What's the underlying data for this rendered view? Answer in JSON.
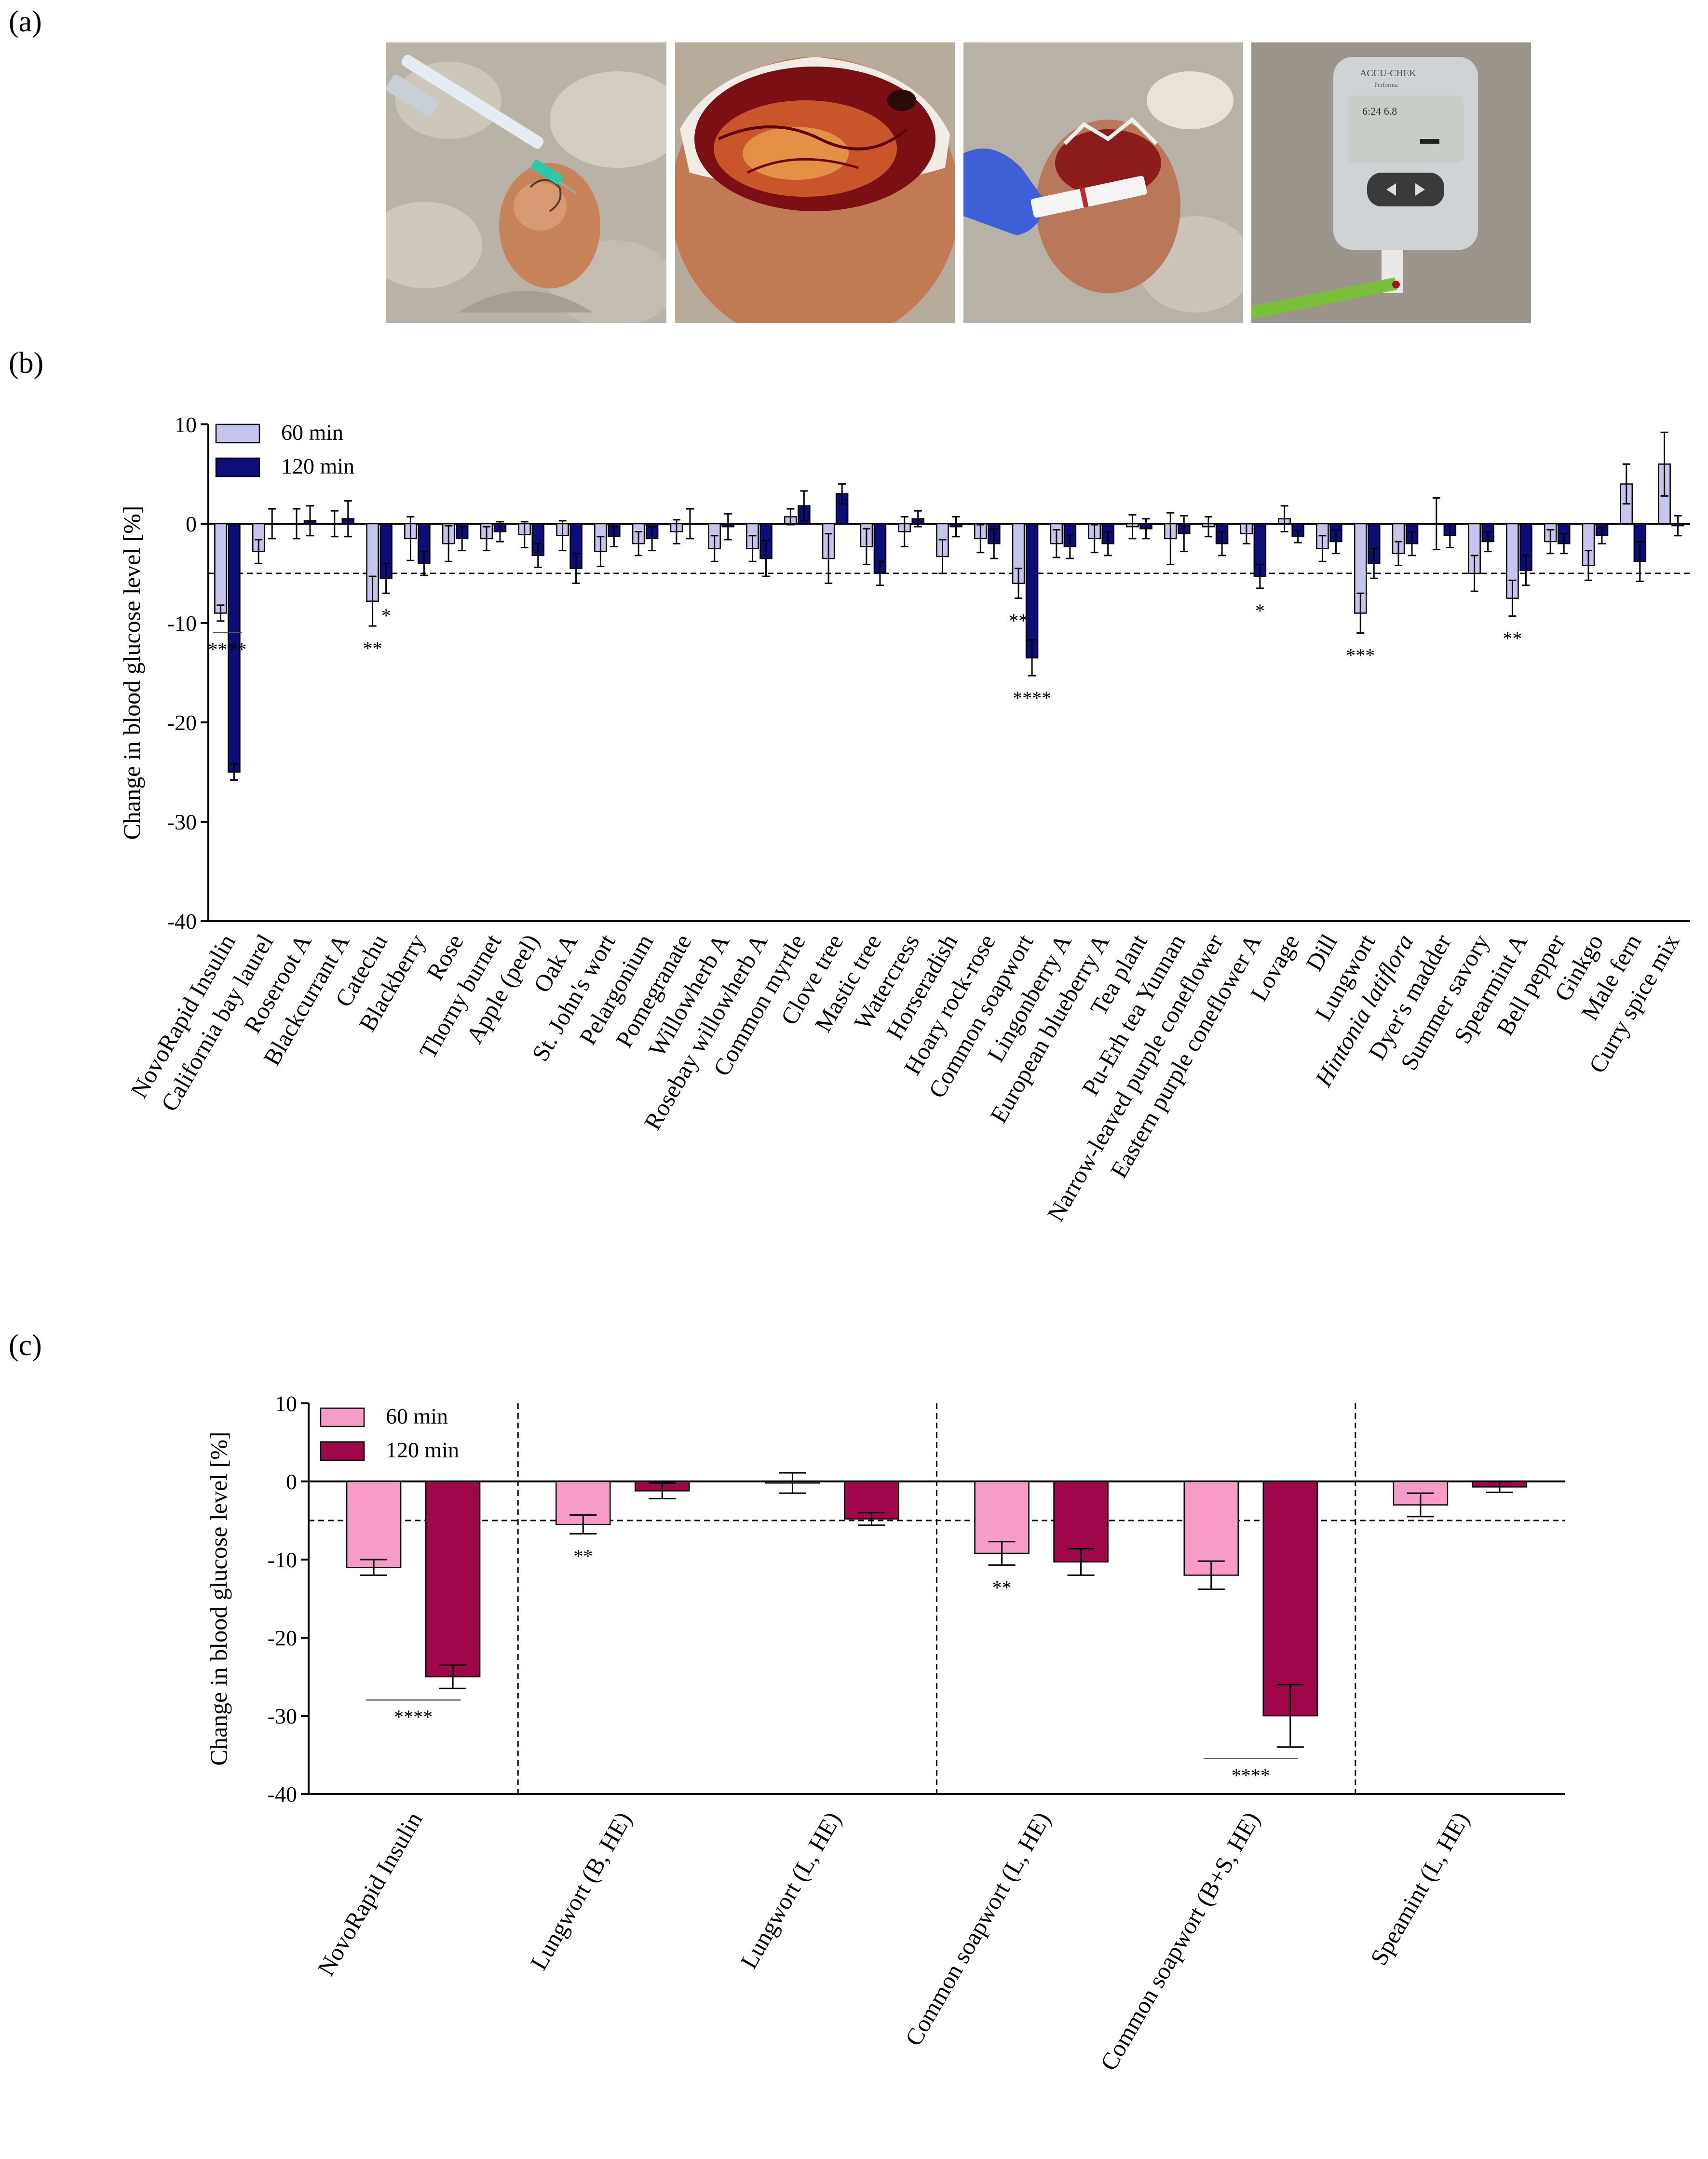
{
  "panels": {
    "a": "(a)",
    "b": "(b)",
    "c": "(c)"
  },
  "photos": [
    {
      "name": "photo-egg-injection",
      "meter_top": "",
      "meter_bottom": ""
    },
    {
      "name": "photo-opened-egg",
      "meter_top": "",
      "meter_bottom": ""
    },
    {
      "name": "photo-blood-sampling",
      "meter_top": "",
      "meter_bottom": ""
    },
    {
      "name": "photo-glucometer",
      "meter_top": "ACCU-CHEK",
      "meter_bottom": "Performa"
    }
  ],
  "chart_data": [
    {
      "id": "b",
      "type": "bar",
      "title": "",
      "ylabel": "Change in blood glucose level [%]",
      "xlabel": "",
      "ylim": [
        -40,
        10
      ],
      "yticks": [
        10,
        0,
        -10,
        -20,
        -30,
        -40
      ],
      "reference_line": -5,
      "legend": {
        "position": "top-left"
      },
      "series": [
        {
          "name": "60 min",
          "color": "#c5c5f0",
          "values": [
            -9,
            -2.8,
            0,
            0,
            -7.8,
            -1.5,
            -2,
            -1.5,
            -1.1,
            -1.2,
            -2.8,
            -2,
            -0.8,
            -2.5,
            -2.5,
            0.7,
            -3.5,
            -2.3,
            -0.8,
            -3.3,
            -1.5,
            -6,
            -2,
            -1.5,
            -0.3,
            -1.5,
            -0.3,
            -1,
            0.5,
            -2.5,
            -9,
            -3,
            0,
            -5,
            -7.5,
            -1.8,
            -4.2,
            4,
            6
          ],
          "errors": [
            0.8,
            1.2,
            1.5,
            1.3,
            2.5,
            2.2,
            1.8,
            1.2,
            1.3,
            1.5,
            1.5,
            1.2,
            1.2,
            1.3,
            1.3,
            0.8,
            2.5,
            1.8,
            1.5,
            1.7,
            1.4,
            1.5,
            1.4,
            1.4,
            1.2,
            2.6,
            1.0,
            1.0,
            1.3,
            1.3,
            2,
            1.2,
            2.6,
            1.8,
            1.8,
            1.2,
            1.5,
            2,
            3.2
          ]
        },
        {
          "name": "120 min",
          "color": "#0d0d7a",
          "values": [
            -25,
            0,
            0.3,
            0.5,
            -5.5,
            -4,
            -1.5,
            -0.8,
            -3.2,
            -4.5,
            -1.3,
            -1.5,
            0,
            -0.3,
            -3.5,
            1.8,
            3,
            -5,
            0.5,
            -0.3,
            -2,
            -13.5,
            -2.3,
            -2,
            -0.5,
            -1,
            -2,
            -5.3,
            -1.3,
            -1.8,
            -4,
            -2,
            -1.2,
            -1.8,
            -4.7,
            -2,
            -1.2,
            -3.8,
            -0.2
          ],
          "errors": [
            0.8,
            1.5,
            1.5,
            1.8,
            1.5,
            1.2,
            1.2,
            1,
            1.2,
            1.5,
            1,
            1.2,
            1.5,
            1.3,
            1.8,
            1.5,
            1,
            1.2,
            0.8,
            1,
            1.5,
            1.8,
            1.2,
            1.2,
            1,
            1.8,
            1.2,
            1.2,
            0.6,
            1.2,
            1.5,
            1.2,
            1.2,
            1,
            1.5,
            1,
            0.8,
            2,
            1
          ]
        }
      ],
      "categories": [
        "NovoRapid Insulin",
        "California bay laurel",
        "Roseroot A",
        "Blackcurrant A",
        "Catechu",
        "Blackberry",
        "Rose",
        "Thorny burnet",
        "Apple (peel)",
        "Oak A",
        "St. John's wort",
        "Pelargonium",
        "Pomegranate",
        "Willowherb A",
        "Rosebay willowherb A",
        "Common myrtle",
        "Clove tree",
        "Mastic tree",
        "Watercress",
        "Horseradish",
        "Hoary rock-rose",
        "Common soapwort",
        "Lingonberry A",
        "European blueberry A",
        "Tea plant",
        "Pu-Erh tea Yunnan",
        "Narrow-leaved purple coneflower",
        "Eastern purple coneflower A",
        "Lovage",
        "Dill",
        "Lungwort",
        "Hintonia latiflora",
        "Dyer's madder",
        "Summer savory",
        "Spearmint A",
        "Bell pepper",
        "Ginkgo",
        "Male fern",
        "Curry spice mix"
      ],
      "italic_categories": [
        "Hintonia latiflora"
      ],
      "annotations": [
        {
          "cat": 0,
          "series": 0,
          "text": "****",
          "bracket": true
        },
        {
          "cat": 4,
          "series": 0,
          "text": "**"
        },
        {
          "cat": 4,
          "series": 1,
          "text": "*"
        },
        {
          "cat": 21,
          "series": 0,
          "text": "**"
        },
        {
          "cat": 21,
          "series": 1,
          "text": "****"
        },
        {
          "cat": 27,
          "series": 1,
          "text": "*"
        },
        {
          "cat": 30,
          "series": 0,
          "text": "***"
        },
        {
          "cat": 34,
          "series": 0,
          "text": "**"
        }
      ]
    },
    {
      "id": "c",
      "type": "bar",
      "title": "",
      "ylabel": "Change in blood glucose level [%]",
      "xlabel": "",
      "ylim": [
        -40,
        10
      ],
      "yticks": [
        10,
        0,
        -10,
        -20,
        -30,
        -40
      ],
      "reference_line": -5,
      "legend": {
        "position": "top-left"
      },
      "group_separators_after": [
        0,
        2,
        4
      ],
      "series": [
        {
          "name": "60 min",
          "color": "#f79cc8",
          "values": [
            -11,
            -5.5,
            -0.2,
            -9.2,
            -12,
            -3
          ],
          "errors": [
            1,
            1.2,
            1.3,
            1.5,
            1.8,
            1.5
          ]
        },
        {
          "name": "120 min",
          "color": "#a0064a",
          "values": [
            -25,
            -1.2,
            -4.8,
            -10.3,
            -30,
            -0.7
          ],
          "errors": [
            1.5,
            1,
            0.8,
            1.7,
            4,
            0.7
          ]
        }
      ],
      "categories": [
        "NovoRapid Insulin",
        "Lungwort (B, HE)",
        "Lungwort (L, HE)",
        "Common soapwort (L, HE)",
        "Common soapwort (B+S, HE)",
        "Speamint (L, HE)"
      ],
      "annotations": [
        {
          "cat": 0,
          "series": 1,
          "text": "****",
          "bracket": true
        },
        {
          "cat": 1,
          "series": 0,
          "text": "**"
        },
        {
          "cat": 3,
          "series": 0,
          "text": "**"
        },
        {
          "cat": 4,
          "series": 1,
          "text": "****",
          "bracket": true
        }
      ]
    }
  ]
}
